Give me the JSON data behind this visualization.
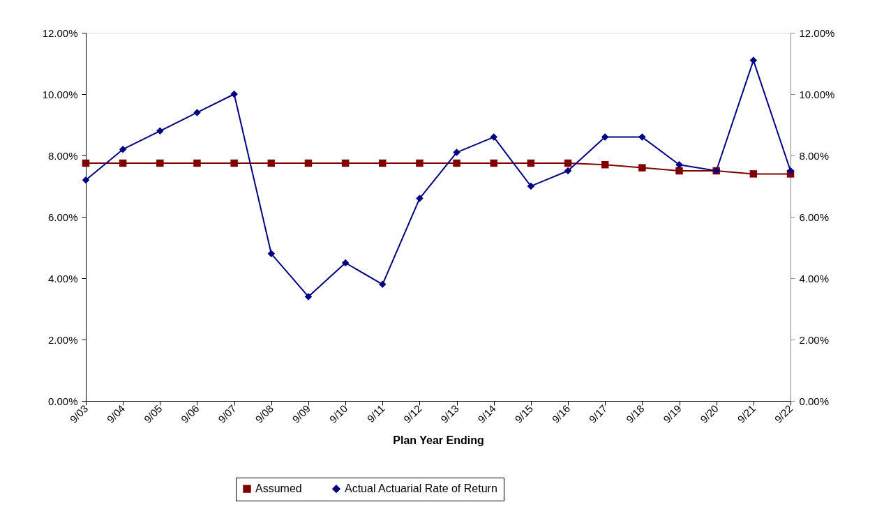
{
  "chart_data": {
    "type": "line",
    "xlabel": "Plan Year Ending",
    "categories": [
      "9/03",
      "9/04",
      "9/05",
      "9/06",
      "9/07",
      "9/08",
      "9/09",
      "9/10",
      "9/11",
      "9/12",
      "9/13",
      "9/14",
      "9/15",
      "9/16",
      "9/17",
      "9/18",
      "9/19",
      "9/20",
      "9/21",
      "9/22"
    ],
    "series": [
      {
        "name": "Assumed",
        "color": "#800000",
        "marker": "square",
        "values": [
          7.75,
          7.75,
          7.75,
          7.75,
          7.75,
          7.75,
          7.75,
          7.75,
          7.75,
          7.75,
          7.75,
          7.75,
          7.75,
          7.75,
          7.7,
          7.6,
          7.5,
          7.5,
          7.4,
          7.4
        ]
      },
      {
        "name": "Actual Actuarial Rate of Return",
        "color": "#000080",
        "marker": "diamond",
        "values": [
          7.2,
          8.2,
          8.8,
          9.4,
          10.0,
          4.8,
          3.4,
          4.5,
          3.8,
          6.6,
          8.1,
          8.6,
          7.0,
          7.5,
          8.6,
          8.6,
          7.7,
          7.5,
          11.1,
          7.5
        ]
      }
    ],
    "ylim": [
      0,
      12
    ],
    "yticks": [
      {
        "value": 0,
        "label": "0.00%"
      },
      {
        "value": 2,
        "label": "2.00%"
      },
      {
        "value": 4,
        "label": "4.00%"
      },
      {
        "value": 6,
        "label": "6.00%"
      },
      {
        "value": 8,
        "label": "8.00%"
      },
      {
        "value": 10,
        "label": "10.00%"
      },
      {
        "value": 12,
        "label": "12.00%"
      }
    ],
    "y2lim": [
      0,
      12
    ],
    "y2ticks": [
      {
        "value": 0,
        "label": "0.00%"
      },
      {
        "value": 2,
        "label": "2.00%"
      },
      {
        "value": 4,
        "label": "4.00%"
      },
      {
        "value": 6,
        "label": "6.00%"
      },
      {
        "value": 8,
        "label": "8.00%"
      },
      {
        "value": 10,
        "label": "10.00%"
      },
      {
        "value": 12,
        "label": "12.00%"
      }
    ],
    "grid": false,
    "legend": "bottom",
    "line_style": "solid"
  }
}
